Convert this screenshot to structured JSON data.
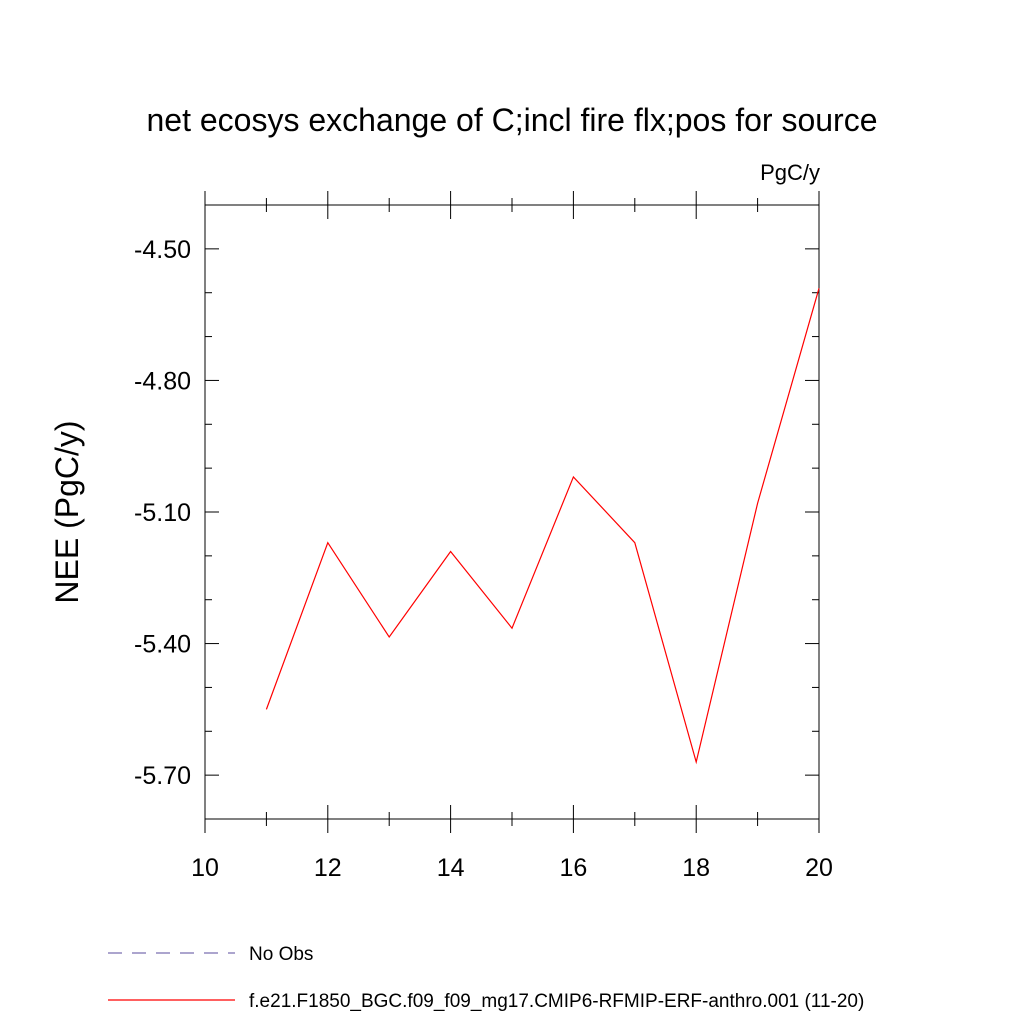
{
  "chart_data": {
    "type": "line",
    "title": "net ecosys exchange of C;incl fire flx;pos for source",
    "units_label": "PgC/y",
    "xlabel": "",
    "ylabel": "NEE  (PgC/y)",
    "xlim": [
      10,
      20
    ],
    "ylim": [
      -5.8,
      -4.4
    ],
    "x_ticks": [
      10,
      12,
      14,
      16,
      18,
      20
    ],
    "x_tick_labels": [
      "10",
      "12",
      "14",
      "16",
      "18",
      "20"
    ],
    "x_minor_ticks": [
      11,
      13,
      15,
      17,
      19
    ],
    "y_ticks": [
      -4.5,
      -4.8,
      -5.1,
      -5.4,
      -5.7
    ],
    "y_tick_labels": [
      "-4.50",
      "-4.80",
      "-5.10",
      "-5.40",
      "-5.70"
    ],
    "y_minor_ticks": [
      -4.6,
      -4.7,
      -4.9,
      -5.0,
      -5.2,
      -5.3,
      -5.5,
      -5.6,
      -5.8
    ],
    "grid": false,
    "legend_position": "bottom",
    "series": [
      {
        "name": "No Obs",
        "color": "#7a6fb0",
        "dashed": true,
        "x": [],
        "y": []
      },
      {
        "name": "f.e21.F1850_BGC.f09_f09_mg17.CMIP6-RFMIP-ERF-anthro.001 (11-20)",
        "color": "#ff0000",
        "dashed": false,
        "x": [
          11,
          12,
          13,
          14,
          15,
          16,
          17,
          18,
          19,
          20
        ],
        "y": [
          -5.55,
          -5.17,
          -5.385,
          -5.19,
          -5.365,
          -5.02,
          -5.17,
          -5.67,
          -5.08,
          -4.59
        ]
      }
    ]
  }
}
